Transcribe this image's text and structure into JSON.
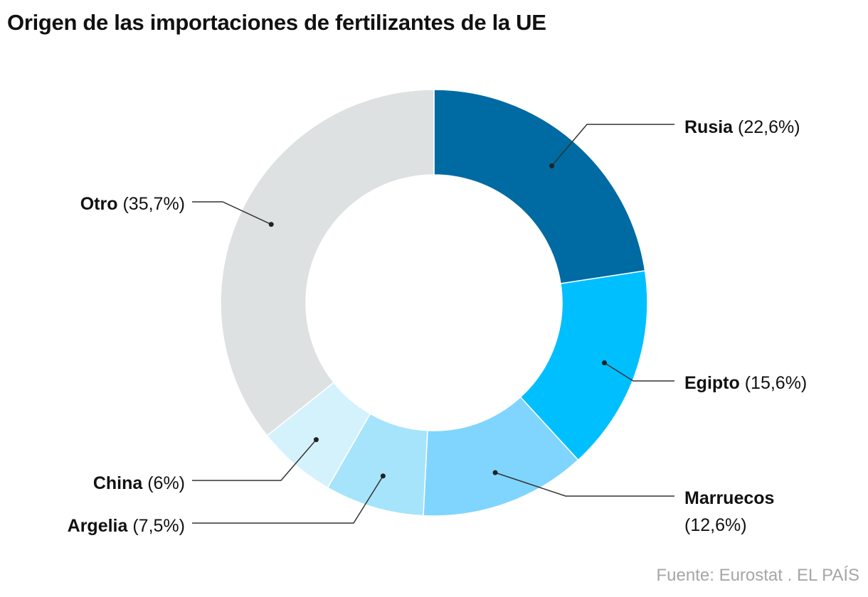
{
  "title": "Origen de las importaciones de fertilizantes de la UE",
  "source": "Fuente: Eurostat . EL PAÍS",
  "chart_data": {
    "type": "pie",
    "donut": true,
    "title": "Origen de las importaciones de fertilizantes de la UE",
    "unit": "%",
    "legend": "none (direct labels with leader lines)",
    "slices": [
      {
        "name": "Rusia",
        "value": 22.6,
        "pct_label": "(22,6%)",
        "color": "#006aa3"
      },
      {
        "name": "Egipto",
        "value": 15.6,
        "pct_label": "(15,6%)",
        "color": "#00bfff"
      },
      {
        "name": "Marruecos",
        "value": 12.6,
        "pct_label": "(12,6%)",
        "color": "#80d5fe"
      },
      {
        "name": "Argelia",
        "value": 7.5,
        "pct_label": "(7,5%)",
        "color": "#a6e4fc"
      },
      {
        "name": "China",
        "value": 6,
        "pct_label": "(6%)",
        "color": "#d4f2fb"
      },
      {
        "name": "Otro",
        "value": 35.7,
        "pct_label": "(35,7%)",
        "color": "#dde1e2"
      }
    ]
  }
}
